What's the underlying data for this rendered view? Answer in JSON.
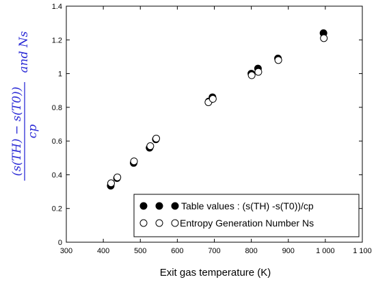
{
  "chart_data": {
    "type": "scatter",
    "xlabel": "Exit gas temperature (K)",
    "ylabel_numerator": "(s(TH) − s(T0))",
    "ylabel_denominator": "cp",
    "ylabel_suffix": "and Ns",
    "xlim": [
      300,
      1100
    ],
    "ylim": [
      0,
      1.4
    ],
    "xticks": [
      300,
      400,
      500,
      600,
      700,
      800,
      900,
      1000,
      1100
    ],
    "xtick_labels": [
      "300",
      "400",
      "500",
      "600",
      "700",
      "800",
      "900",
      "1 000",
      "1 100"
    ],
    "yticks": [
      0,
      0.2,
      0.4,
      0.6,
      0.8,
      1.0,
      1.2,
      1.4
    ],
    "ytick_labels": [
      "0",
      "0.2",
      "0.4",
      "0.6",
      "0.8",
      "1",
      "1.2",
      "1.4"
    ],
    "grid": false,
    "legend_position": "bottom-right",
    "series": [
      {
        "name": "Table values : (s(TH) -s(T0))/cp",
        "marker": "filled-circle",
        "color": "#000000",
        "points": [
          [
            420,
            0.335
          ],
          [
            437,
            0.38
          ],
          [
            482,
            0.47
          ],
          [
            525,
            0.56
          ],
          [
            542,
            0.61
          ],
          [
            685,
            0.835
          ],
          [
            695,
            0.86
          ],
          [
            800,
            1.0
          ],
          [
            818,
            1.03
          ],
          [
            872,
            1.09
          ],
          [
            995,
            1.24
          ]
        ]
      },
      {
        "name": "Entropy Generation Number Ns",
        "marker": "open-circle",
        "color": "#000000",
        "points": [
          [
            421,
            0.35
          ],
          [
            438,
            0.385
          ],
          [
            483,
            0.48
          ],
          [
            527,
            0.57
          ],
          [
            543,
            0.615
          ],
          [
            684,
            0.83
          ],
          [
            696,
            0.85
          ],
          [
            801,
            0.99
          ],
          [
            819,
            1.01
          ],
          [
            873,
            1.08
          ],
          [
            996,
            1.21
          ]
        ]
      }
    ]
  }
}
